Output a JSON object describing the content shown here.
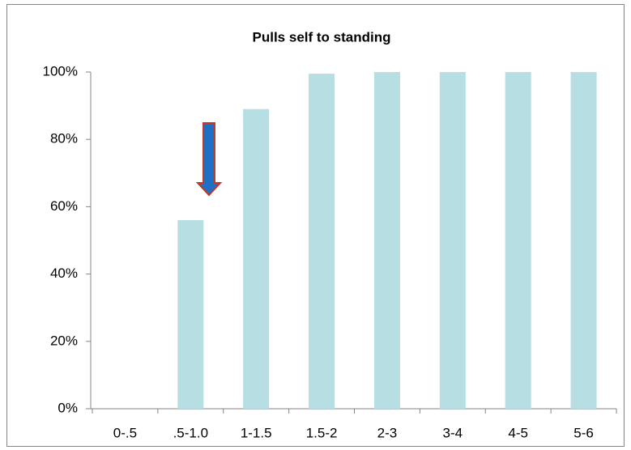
{
  "chart_data": {
    "type": "bar",
    "title": "Pulls self to standing",
    "categories": [
      "0-.5",
      ".5-1.0",
      "1-1.5",
      "1.5-2",
      "2-3",
      "3-4",
      "4-5",
      "5-6"
    ],
    "values": [
      0,
      56,
      89,
      99.5,
      100,
      100,
      100,
      100
    ],
    "color": "#b7dfe3",
    "ylim": [
      0,
      100
    ],
    "yticks": [
      {
        "value": 0,
        "label": "0%"
      },
      {
        "value": 20,
        "label": "20%"
      },
      {
        "value": 40,
        "label": "40%"
      },
      {
        "value": 60,
        "label": "60%"
      },
      {
        "value": 80,
        "label": "80%"
      },
      {
        "value": 100,
        "label": "100%"
      }
    ],
    "grid": false
  }
}
